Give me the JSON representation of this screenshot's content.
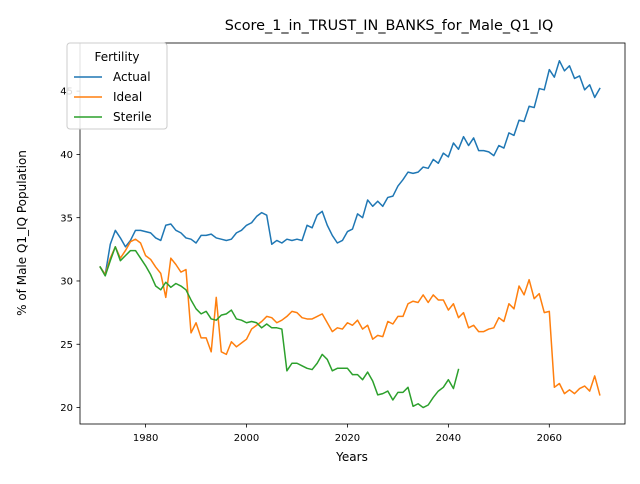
{
  "chart_data": {
    "type": "line",
    "title": "Score_1_in_TRUST_IN_BANKS_for_Male_Q1_IQ",
    "xlabel": "Years",
    "ylabel": "% of Male Q1_IQ Population",
    "xlim": [
      1967,
      2075
    ],
    "ylim": [
      18.7,
      48.8
    ],
    "xticks": [
      1980,
      2000,
      2020,
      2040,
      2060
    ],
    "yticks": [
      20,
      25,
      30,
      35,
      40,
      45
    ],
    "grid": false,
    "legend": {
      "title": "Fertility",
      "placement": "top-left"
    },
    "series": [
      {
        "name": "Actual",
        "color": "#1f77b4",
        "points": [
          [
            1971,
            31.1
          ],
          [
            1972,
            30.5
          ],
          [
            1973,
            32.9
          ],
          [
            1974,
            34.0
          ],
          [
            1975,
            33.4
          ],
          [
            1976,
            32.7
          ],
          [
            1977,
            33.2
          ],
          [
            1978,
            34.0
          ],
          [
            1979,
            34.0
          ],
          [
            1980,
            33.9
          ],
          [
            1981,
            33.8
          ],
          [
            1982,
            33.4
          ],
          [
            1983,
            33.2
          ],
          [
            1984,
            34.4
          ],
          [
            1985,
            34.5
          ],
          [
            1986,
            34.0
          ],
          [
            1987,
            33.8
          ],
          [
            1988,
            33.4
          ],
          [
            1989,
            33.3
          ],
          [
            1990,
            33.0
          ],
          [
            1991,
            33.6
          ],
          [
            1992,
            33.6
          ],
          [
            1993,
            33.7
          ],
          [
            1994,
            33.4
          ],
          [
            1995,
            33.3
          ],
          [
            1996,
            33.2
          ],
          [
            1997,
            33.3
          ],
          [
            1998,
            33.8
          ],
          [
            1999,
            34.0
          ],
          [
            2000,
            34.4
          ],
          [
            2001,
            34.6
          ],
          [
            2002,
            35.1
          ],
          [
            2003,
            35.4
          ],
          [
            2004,
            35.2
          ],
          [
            2005,
            32.9
          ],
          [
            2006,
            33.2
          ],
          [
            2007,
            33.0
          ],
          [
            2008,
            33.3
          ],
          [
            2009,
            33.2
          ],
          [
            2010,
            33.3
          ],
          [
            2011,
            33.2
          ],
          [
            2012,
            34.4
          ],
          [
            2013,
            34.2
          ],
          [
            2014,
            35.2
          ],
          [
            2015,
            35.5
          ],
          [
            2016,
            34.4
          ],
          [
            2017,
            33.6
          ],
          [
            2018,
            33.0
          ],
          [
            2019,
            33.2
          ],
          [
            2020,
            33.9
          ],
          [
            2021,
            34.1
          ],
          [
            2022,
            35.3
          ],
          [
            2023,
            35.0
          ],
          [
            2024,
            36.4
          ],
          [
            2025,
            35.9
          ],
          [
            2026,
            36.3
          ],
          [
            2027,
            35.9
          ],
          [
            2028,
            36.6
          ],
          [
            2029,
            36.7
          ],
          [
            2030,
            37.5
          ],
          [
            2031,
            38.0
          ],
          [
            2032,
            38.6
          ],
          [
            2033,
            38.5
          ],
          [
            2034,
            38.6
          ],
          [
            2035,
            39.0
          ],
          [
            2036,
            38.9
          ],
          [
            2037,
            39.6
          ],
          [
            2038,
            39.3
          ],
          [
            2039,
            40.1
          ],
          [
            2040,
            39.8
          ],
          [
            2041,
            40.9
          ],
          [
            2042,
            40.4
          ],
          [
            2043,
            41.4
          ],
          [
            2044,
            40.7
          ],
          [
            2045,
            41.3
          ],
          [
            2046,
            40.3
          ],
          [
            2047,
            40.3
          ],
          [
            2048,
            40.2
          ],
          [
            2049,
            39.9
          ],
          [
            2050,
            40.7
          ],
          [
            2051,
            40.5
          ],
          [
            2052,
            41.7
          ],
          [
            2053,
            41.5
          ],
          [
            2054,
            42.7
          ],
          [
            2055,
            42.6
          ],
          [
            2056,
            43.8
          ],
          [
            2057,
            43.7
          ],
          [
            2058,
            45.2
          ],
          [
            2059,
            45.1
          ],
          [
            2060,
            46.7
          ],
          [
            2061,
            46.1
          ],
          [
            2062,
            47.4
          ],
          [
            2063,
            46.6
          ],
          [
            2064,
            47.0
          ],
          [
            2065,
            46.0
          ],
          [
            2066,
            46.2
          ],
          [
            2067,
            45.1
          ],
          [
            2068,
            45.5
          ],
          [
            2069,
            44.5
          ],
          [
            2070,
            45.2
          ]
        ]
      },
      {
        "name": "Ideal",
        "color": "#ff7f0e",
        "points": [
          [
            1971,
            31.1
          ],
          [
            1972,
            30.5
          ],
          [
            1973,
            31.8
          ],
          [
            1974,
            32.7
          ],
          [
            1975,
            31.8
          ],
          [
            1976,
            32.4
          ],
          [
            1977,
            33.1
          ],
          [
            1978,
            33.3
          ],
          [
            1979,
            33.0
          ],
          [
            1980,
            32.0
          ],
          [
            1981,
            31.7
          ],
          [
            1982,
            31.1
          ],
          [
            1983,
            30.6
          ],
          [
            1984,
            28.7
          ],
          [
            1985,
            31.8
          ],
          [
            1986,
            31.3
          ],
          [
            1987,
            30.7
          ],
          [
            1988,
            30.9
          ],
          [
            1989,
            25.9
          ],
          [
            1990,
            26.7
          ],
          [
            1991,
            25.5
          ],
          [
            1992,
            25.5
          ],
          [
            1993,
            24.4
          ],
          [
            1994,
            28.7
          ],
          [
            1995,
            24.4
          ],
          [
            1996,
            24.2
          ],
          [
            1997,
            25.2
          ],
          [
            1998,
            24.8
          ],
          [
            1999,
            25.1
          ],
          [
            2000,
            25.4
          ],
          [
            2001,
            26.2
          ],
          [
            2002,
            26.5
          ],
          [
            2003,
            26.8
          ],
          [
            2004,
            27.2
          ],
          [
            2005,
            27.1
          ],
          [
            2006,
            26.7
          ],
          [
            2007,
            26.9
          ],
          [
            2008,
            27.2
          ],
          [
            2009,
            27.6
          ],
          [
            2010,
            27.5
          ],
          [
            2011,
            27.1
          ],
          [
            2012,
            27.0
          ],
          [
            2013,
            27.0
          ],
          [
            2014,
            27.2
          ],
          [
            2015,
            27.4
          ],
          [
            2016,
            26.7
          ],
          [
            2017,
            26.0
          ],
          [
            2018,
            26.3
          ],
          [
            2019,
            26.2
          ],
          [
            2020,
            26.7
          ],
          [
            2021,
            26.5
          ],
          [
            2022,
            26.9
          ],
          [
            2023,
            26.2
          ],
          [
            2024,
            26.5
          ],
          [
            2025,
            25.4
          ],
          [
            2026,
            25.7
          ],
          [
            2027,
            25.6
          ],
          [
            2028,
            26.8
          ],
          [
            2029,
            26.6
          ],
          [
            2030,
            27.2
          ],
          [
            2031,
            27.2
          ],
          [
            2032,
            28.2
          ],
          [
            2033,
            28.4
          ],
          [
            2034,
            28.3
          ],
          [
            2035,
            28.9
          ],
          [
            2036,
            28.3
          ],
          [
            2037,
            28.9
          ],
          [
            2038,
            28.5
          ],
          [
            2039,
            28.5
          ],
          [
            2040,
            27.7
          ],
          [
            2041,
            28.2
          ],
          [
            2042,
            27.1
          ],
          [
            2043,
            27.5
          ],
          [
            2044,
            26.3
          ],
          [
            2045,
            26.5
          ],
          [
            2046,
            26.0
          ],
          [
            2047,
            26.0
          ],
          [
            2048,
            26.2
          ],
          [
            2049,
            26.3
          ],
          [
            2050,
            27.1
          ],
          [
            2051,
            26.8
          ],
          [
            2052,
            28.2
          ],
          [
            2053,
            27.8
          ],
          [
            2054,
            29.6
          ],
          [
            2055,
            28.9
          ],
          [
            2056,
            30.1
          ],
          [
            2057,
            28.6
          ],
          [
            2058,
            29.0
          ],
          [
            2059,
            27.5
          ],
          [
            2060,
            27.6
          ],
          [
            2061,
            21.6
          ],
          [
            2062,
            21.9
          ],
          [
            2063,
            21.1
          ],
          [
            2064,
            21.4
          ],
          [
            2065,
            21.1
          ],
          [
            2066,
            21.5
          ],
          [
            2067,
            21.7
          ],
          [
            2068,
            21.3
          ],
          [
            2069,
            22.5
          ],
          [
            2070,
            21.0
          ]
        ]
      },
      {
        "name": "Sterile",
        "color": "#2ca02c",
        "points": [
          [
            1971,
            31.1
          ],
          [
            1972,
            30.4
          ],
          [
            1973,
            31.6
          ],
          [
            1974,
            32.7
          ],
          [
            1975,
            31.6
          ],
          [
            1976,
            32.0
          ],
          [
            1977,
            32.4
          ],
          [
            1978,
            32.4
          ],
          [
            1979,
            31.8
          ],
          [
            1980,
            31.2
          ],
          [
            1981,
            30.5
          ],
          [
            1982,
            29.6
          ],
          [
            1983,
            29.3
          ],
          [
            1984,
            29.9
          ],
          [
            1985,
            29.5
          ],
          [
            1986,
            29.8
          ],
          [
            1987,
            29.6
          ],
          [
            1988,
            29.3
          ],
          [
            1989,
            28.5
          ],
          [
            1990,
            27.8
          ],
          [
            1991,
            27.4
          ],
          [
            1992,
            27.6
          ],
          [
            1993,
            27.0
          ],
          [
            1994,
            26.9
          ],
          [
            1995,
            27.3
          ],
          [
            1996,
            27.4
          ],
          [
            1997,
            27.7
          ],
          [
            1998,
            27.0
          ],
          [
            1999,
            26.9
          ],
          [
            2000,
            26.7
          ],
          [
            2001,
            26.8
          ],
          [
            2002,
            26.7
          ],
          [
            2003,
            26.3
          ],
          [
            2004,
            26.6
          ],
          [
            2005,
            26.3
          ],
          [
            2006,
            26.3
          ],
          [
            2007,
            26.2
          ],
          [
            2008,
            22.9
          ],
          [
            2009,
            23.5
          ],
          [
            2010,
            23.5
          ],
          [
            2011,
            23.3
          ],
          [
            2012,
            23.1
          ],
          [
            2013,
            23.0
          ],
          [
            2014,
            23.5
          ],
          [
            2015,
            24.2
          ],
          [
            2016,
            23.8
          ],
          [
            2017,
            22.9
          ],
          [
            2018,
            23.1
          ],
          [
            2019,
            23.1
          ],
          [
            2020,
            23.1
          ],
          [
            2021,
            22.6
          ],
          [
            2022,
            22.6
          ],
          [
            2023,
            22.2
          ],
          [
            2024,
            22.8
          ],
          [
            2025,
            22.1
          ],
          [
            2026,
            21.0
          ],
          [
            2027,
            21.1
          ],
          [
            2028,
            21.3
          ],
          [
            2029,
            20.6
          ],
          [
            2030,
            21.2
          ],
          [
            2031,
            21.2
          ],
          [
            2032,
            21.6
          ],
          [
            2033,
            20.1
          ],
          [
            2034,
            20.3
          ],
          [
            2035,
            20.0
          ],
          [
            2036,
            20.2
          ],
          [
            2037,
            20.8
          ],
          [
            2038,
            21.3
          ],
          [
            2039,
            21.6
          ],
          [
            2040,
            22.2
          ],
          [
            2041,
            21.5
          ],
          [
            2042,
            23.0
          ]
        ]
      }
    ]
  }
}
